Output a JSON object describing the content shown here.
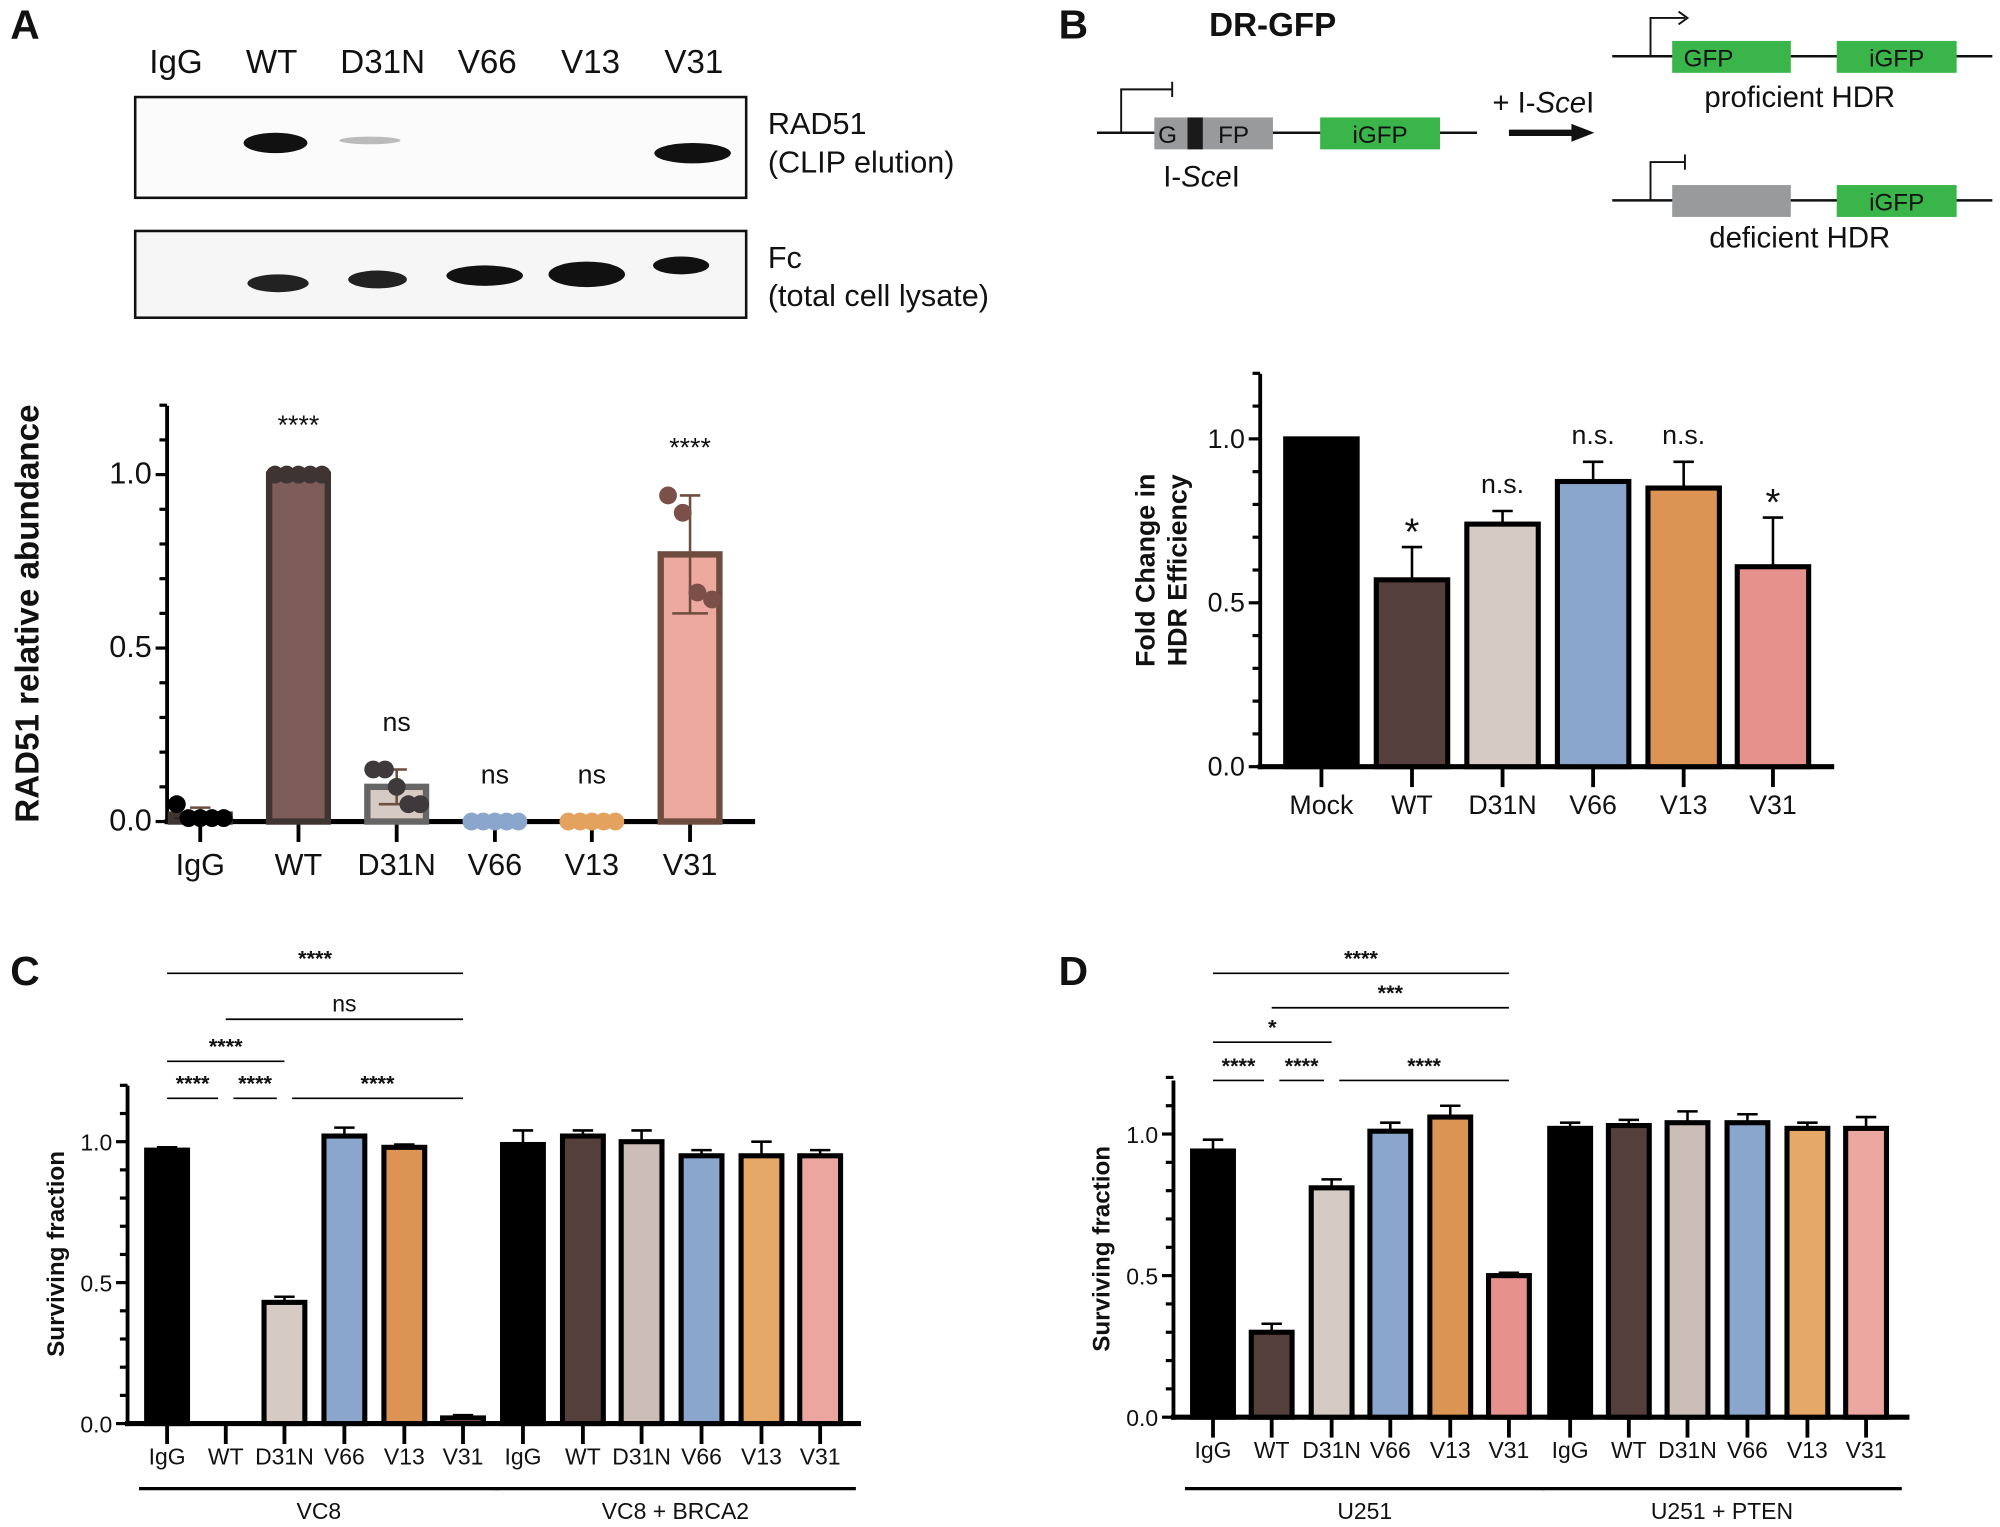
{
  "panels": {
    "a": "A",
    "b": "B",
    "c": "C",
    "d": "D"
  },
  "blot": {
    "lanes": [
      "IgG",
      "WT",
      "D31N",
      "V66",
      "V13",
      "V31"
    ],
    "top_label": [
      "RAD51",
      "(CLIP elution)"
    ],
    "bottom_label": [
      "Fc",
      "(total cell lysate)"
    ]
  },
  "diagram": {
    "title": "DR-GFP",
    "left_g": "G",
    "left_fp": "FP",
    "igfp": "iGFP",
    "gfp": "GFP",
    "site_prefix": "I-",
    "site_italic": "Sce",
    "site_suffix": "I",
    "arrow_prefix": "+ I-",
    "proficient": "proficient HDR",
    "deficient": "deficient HDR"
  },
  "chart_data": [
    {
      "id": "a",
      "type": "bar",
      "ylabel": "RAD51 relative abundance",
      "ylim": [
        0,
        1.2
      ],
      "yticks": [
        0.0,
        0.5,
        1.0
      ],
      "categories": [
        "IgG",
        "WT",
        "D31N",
        "V66",
        "V13",
        "V31"
      ],
      "values": [
        0.02,
        1.0,
        0.1,
        0.0,
        0.0,
        0.77
      ],
      "err_high": [
        0.04,
        1.0,
        0.15,
        0.0,
        0.0,
        0.94
      ],
      "err_low": [
        0.0,
        1.0,
        0.05,
        0.0,
        0.0,
        0.6
      ],
      "points": [
        [
          0.05,
          0.01,
          0.01,
          0.01,
          0.01
        ],
        [
          1,
          1,
          1,
          1,
          1
        ],
        [
          0.15,
          0.15,
          0.1,
          0.05,
          0.05
        ],
        [
          0,
          0,
          0,
          0,
          0
        ],
        [
          0,
          0,
          0,
          0,
          0
        ],
        [
          0.94,
          0.89,
          0.66,
          0.64
        ]
      ],
      "significance": [
        "",
        "****",
        "ns",
        "ns",
        "ns",
        "****"
      ],
      "colors": [
        "#000000",
        "#7d5c59",
        "#d5cac4",
        "#8aa6cc",
        "#dc9455",
        "#eda9a0"
      ],
      "point_colors": [
        "#000000",
        "#3e3432",
        "#3e3a3c",
        "#8aa6cc",
        "#e3a25d",
        "#7a5049"
      ]
    },
    {
      "id": "b",
      "type": "bar",
      "ylabel": [
        "Fold Change in",
        "HDR Efficiency"
      ],
      "ylim": [
        0,
        1.2
      ],
      "yticks": [
        0.0,
        0.5,
        1.0
      ],
      "categories": [
        "Mock",
        "WT",
        "D31N",
        "V66",
        "V13",
        "V31"
      ],
      "values": [
        1.0,
        0.57,
        0.74,
        0.87,
        0.85,
        0.61
      ],
      "err_high": [
        1.0,
        0.67,
        0.78,
        0.93,
        0.93,
        0.76
      ],
      "significance": [
        "",
        "*",
        "n.s.",
        "n.s.",
        "n.s.",
        "*"
      ],
      "colors": [
        "#000000",
        "#553f3d",
        "#d5cac4",
        "#8aa6cc",
        "#dc9455",
        "#e6918c"
      ]
    },
    {
      "id": "c",
      "type": "bar",
      "ylabel": "Surviving fraction",
      "ylim": [
        0,
        1.2
      ],
      "yticks": [
        0.0,
        0.5,
        1.0
      ],
      "categories": [
        "IgG",
        "WT",
        "D31N",
        "V66",
        "V13",
        "V31",
        "IgG",
        "WT",
        "D31N",
        "V66",
        "V13",
        "V31"
      ],
      "groups": [
        "VC8",
        "VC8 + BRCA2"
      ],
      "values": [
        0.97,
        0.0,
        0.43,
        1.02,
        0.98,
        0.02,
        0.99,
        1.02,
        1.0,
        0.95,
        0.95,
        0.95
      ],
      "err_high": [
        0.98,
        0.0,
        0.45,
        1.05,
        0.99,
        0.03,
        1.04,
        1.04,
        1.04,
        0.97,
        1.0,
        0.97
      ],
      "colors": [
        "#000000",
        "#553f3d",
        "#d5cac4",
        "#8aa6cc",
        "#dc9455",
        "#e6918c",
        "#000000",
        "#553f3d",
        "#cbbdb7",
        "#8aa6cc",
        "#e6a867",
        "#eba69f"
      ],
      "comparisons": [
        {
          "from": 0,
          "to": 5,
          "label": "****"
        },
        {
          "from": 1,
          "to": 5,
          "label": "ns"
        },
        {
          "from": 0,
          "to": 2,
          "label": "****"
        },
        {
          "from": 0,
          "to": 1,
          "label": "****"
        },
        {
          "from": 1,
          "to": 2,
          "label": "****"
        },
        {
          "from": 2,
          "to": 5,
          "label": "****"
        }
      ]
    },
    {
      "id": "d",
      "type": "bar",
      "ylabel": "Surviving fraction",
      "ylim": [
        0,
        1.2
      ],
      "yticks": [
        0.0,
        0.5,
        1.0
      ],
      "categories": [
        "IgG",
        "WT",
        "D31N",
        "V66",
        "V13",
        "V31",
        "IgG",
        "WT",
        "D31N",
        "V66",
        "V13",
        "V31"
      ],
      "groups": [
        "U251",
        "U251 + PTEN"
      ],
      "values": [
        0.94,
        0.3,
        0.81,
        1.01,
        1.06,
        0.5,
        1.02,
        1.03,
        1.04,
        1.04,
        1.02,
        1.02
      ],
      "err_high": [
        0.98,
        0.33,
        0.84,
        1.04,
        1.1,
        0.51,
        1.04,
        1.05,
        1.08,
        1.07,
        1.04,
        1.06
      ],
      "colors": [
        "#000000",
        "#553f3d",
        "#d5cac4",
        "#8aa6cc",
        "#dc9455",
        "#e6918c",
        "#000000",
        "#553f3d",
        "#cbbdb7",
        "#8aa6cc",
        "#e6a867",
        "#eba69f"
      ],
      "comparisons": [
        {
          "from": 0,
          "to": 5,
          "label": "****"
        },
        {
          "from": 1,
          "to": 5,
          "label": "***"
        },
        {
          "from": 0,
          "to": 2,
          "label": "*"
        },
        {
          "from": 0,
          "to": 1,
          "label": "****"
        },
        {
          "from": 1,
          "to": 2,
          "label": "****"
        },
        {
          "from": 2,
          "to": 5,
          "label": "****"
        }
      ]
    }
  ]
}
